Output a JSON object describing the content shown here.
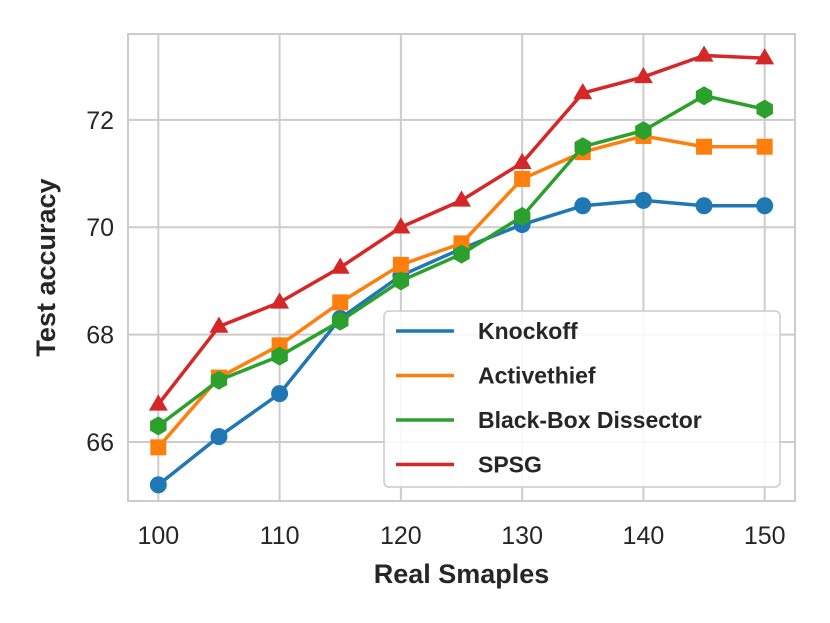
{
  "chart_data": {
    "type": "line",
    "title": "",
    "xlabel": "Real Smaples",
    "ylabel": "Test accuracy",
    "x": [
      100,
      105,
      110,
      115,
      120,
      125,
      130,
      135,
      140,
      145,
      150
    ],
    "xticks": [
      100,
      110,
      120,
      130,
      140,
      150
    ],
    "yticks": [
      66,
      68,
      70,
      72
    ],
    "xlim": [
      97.5,
      152.5
    ],
    "ylim": [
      64.9,
      73.6
    ],
    "grid": true,
    "legend_position": "bottom-right",
    "series": [
      {
        "name": "Knockoff",
        "color": "#1f77b4",
        "marker": "circle",
        "values": [
          65.2,
          66.1,
          66.9,
          68.3,
          69.1,
          69.6,
          70.05,
          70.4,
          70.5,
          70.4,
          70.4
        ]
      },
      {
        "name": "Activethief",
        "color": "#ff7f0e",
        "marker": "square",
        "values": [
          65.9,
          67.2,
          67.8,
          68.6,
          69.3,
          69.7,
          70.9,
          71.4,
          71.7,
          71.5,
          71.5
        ]
      },
      {
        "name": "Black-Box Dissector",
        "color": "#2ca02c",
        "marker": "hexagon",
        "values": [
          66.3,
          67.15,
          67.6,
          68.25,
          69.0,
          69.5,
          70.2,
          71.5,
          71.8,
          72.45,
          72.2
        ]
      },
      {
        "name": "SPSG",
        "color": "#d62728",
        "marker": "triangle",
        "values": [
          66.7,
          68.15,
          68.6,
          69.25,
          70.0,
          70.5,
          71.2,
          72.5,
          72.8,
          73.2,
          73.15
        ]
      }
    ]
  }
}
